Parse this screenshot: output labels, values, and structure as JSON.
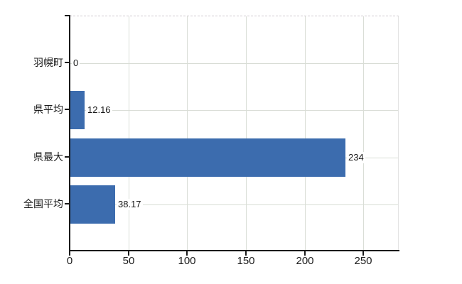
{
  "chart_data": {
    "type": "bar",
    "orientation": "horizontal",
    "categories": [
      "羽幌町",
      "県平均",
      "県最大",
      "全国平均"
    ],
    "values": [
      0,
      12.16,
      234,
      38.17
    ],
    "value_labels": [
      "0",
      "12.16",
      "234",
      "38.17"
    ],
    "x_ticks": [
      0,
      50,
      100,
      150,
      200,
      250
    ],
    "x_tick_labels": [
      "0",
      "50",
      "100",
      "150",
      "200",
      "250"
    ],
    "xlim": [
      0,
      280
    ],
    "grid": true,
    "legend": false,
    "colors": {
      "bar": "#3c6cae",
      "gridline": "#d9ddd6",
      "axis": "#1a1a1a",
      "plot_top_border": "#cfcacf",
      "background": "#ffffff"
    }
  }
}
